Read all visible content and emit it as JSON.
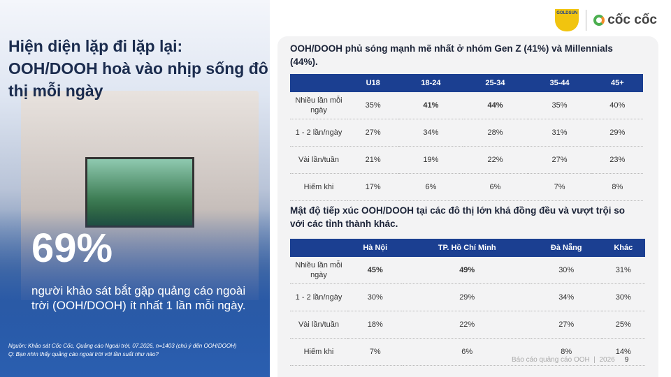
{
  "logos": {
    "goldsun": "GOLDSUN",
    "coccoc": "cốc cốc"
  },
  "left": {
    "title": "Hiện diện lặp đi lặp lại: OOH/DOOH hoà vào nhịp sống đô thị mỗi ngày",
    "stat": "69%",
    "description": "người khảo sát bắt gặp quảng cáo ngoài trời (OOH/DOOH) ít nhất 1 lần mỗi ngày.",
    "source": [
      "Nguồn: Khảo sát Cốc Cốc, Quảng cáo Ngoài trời, 07.2026, n=1403 (chú ý đến OOH/DOOH)",
      "Q: Bạn nhìn thấy quảng cáo ngoài trời với tần suất như nào?"
    ]
  },
  "tables": [
    {
      "title": "OOH/DOOH phủ sóng mạnh mẽ nhất ở nhóm Gen Z (41%) và Millennials (44%).",
      "headers": [
        "U18",
        "18-24",
        "25-34",
        "35-44",
        "45+"
      ],
      "rows": [
        {
          "label": "Nhiều lần mỗi ngày",
          "cells": [
            "35%",
            "41%",
            "44%",
            "35%",
            "40%"
          ]
        },
        {
          "label": "1 - 2 lần/ngày",
          "cells": [
            "27%",
            "34%",
            "28%",
            "31%",
            "29%"
          ]
        },
        {
          "label": "Vài lần/tuần",
          "cells": [
            "21%",
            "19%",
            "22%",
            "27%",
            "23%"
          ]
        },
        {
          "label": "Hiếm khi",
          "cells": [
            "17%",
            "6%",
            "6%",
            "7%",
            "8%"
          ]
        }
      ],
      "bold_cells": [
        [
          0,
          1
        ],
        [
          0,
          2
        ]
      ]
    },
    {
      "title": "Mật độ tiếp xúc OOH/DOOH tại các đô thị lớn khá đồng đều và vượt trội so với các tỉnh thành khác.",
      "headers": [
        "Hà Nội",
        "TP. Hồ Chí Minh",
        "Đà Nẵng",
        "Khác"
      ],
      "rows": [
        {
          "label": "Nhiều lần mỗi ngày",
          "cells": [
            "45%",
            "49%",
            "30%",
            "31%"
          ]
        },
        {
          "label": "1 - 2 lần/ngày",
          "cells": [
            "30%",
            "29%",
            "34%",
            "30%"
          ]
        },
        {
          "label": "Vài lần/tuần",
          "cells": [
            "18%",
            "22%",
            "27%",
            "25%"
          ]
        },
        {
          "label": "Hiếm khi",
          "cells": [
            "7%",
            "6%",
            "8%",
            "14%"
          ]
        }
      ],
      "bold_cells": [
        [
          0,
          0
        ],
        [
          0,
          1
        ]
      ]
    }
  ],
  "footer": {
    "report": "Báo cáo quảng cáo OOH",
    "year": "2026",
    "page": "9"
  }
}
